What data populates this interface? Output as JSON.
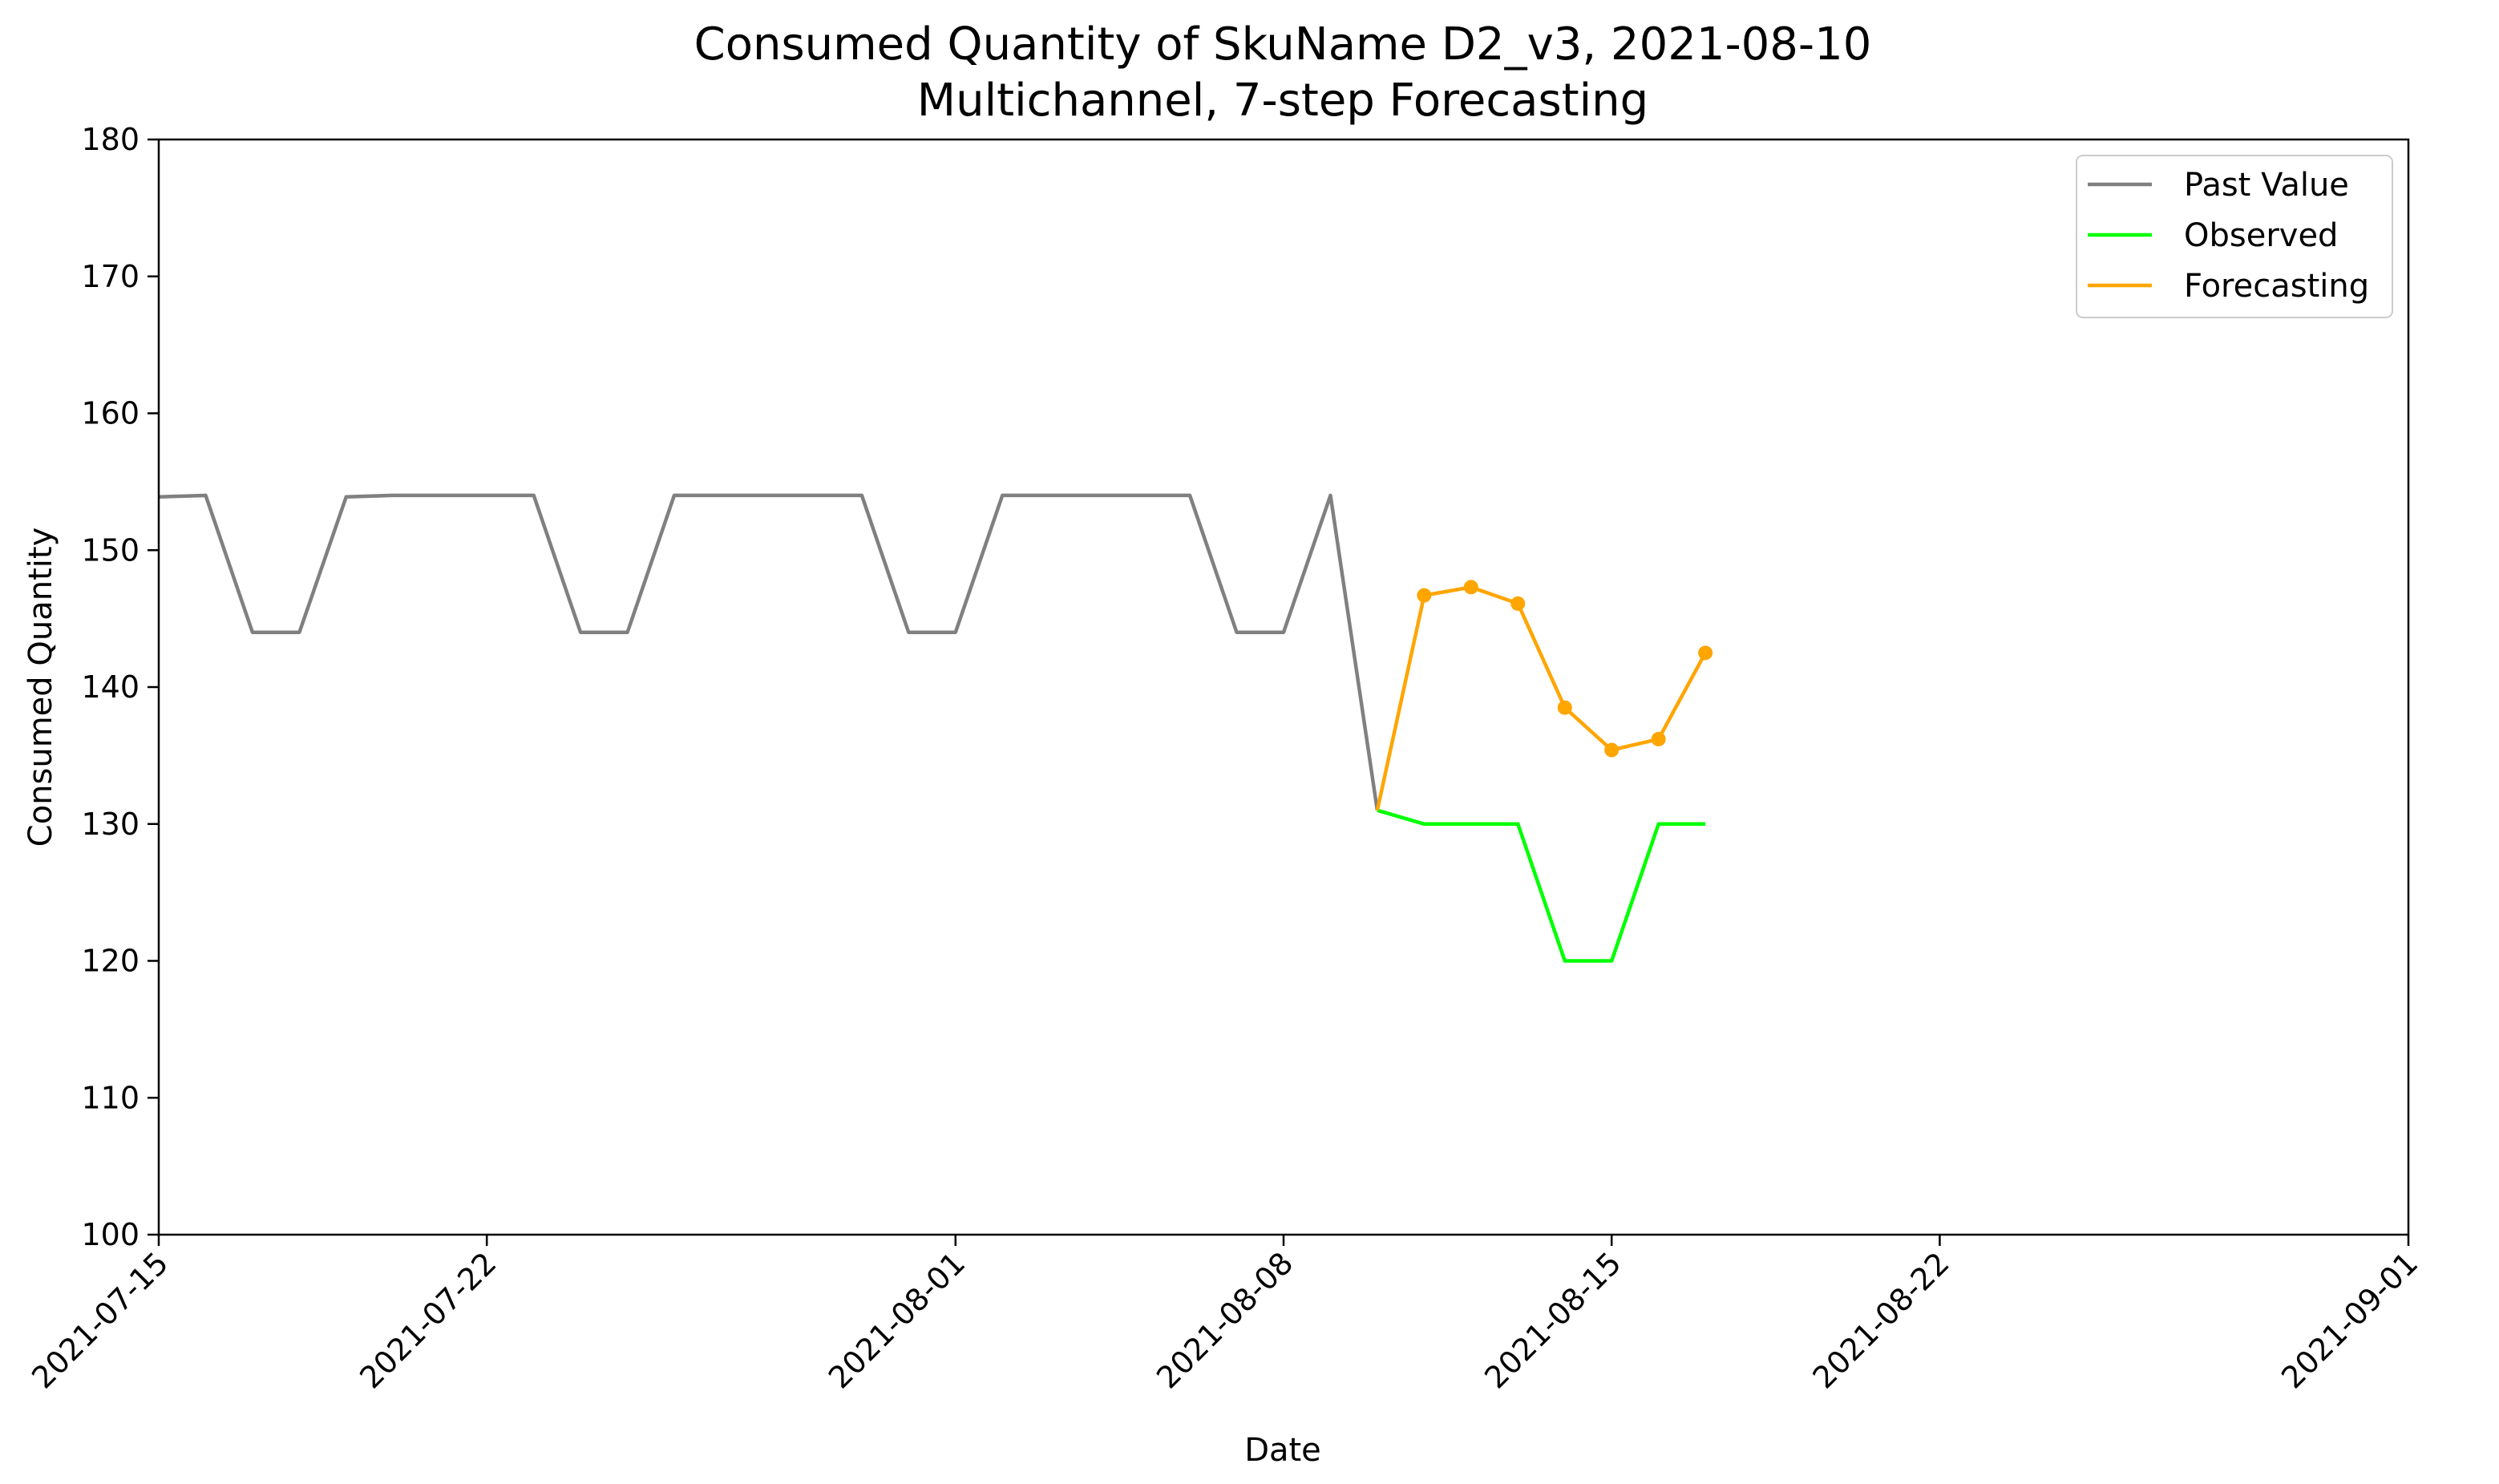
{
  "chart_data": {
    "type": "line",
    "title_line1": "Consumed Quantity of SkuName D2_v3, 2021-08-10",
    "title_line2": "Multichannel, 7-step Forecasting",
    "xlabel": "Date",
    "ylabel": "Consumed Quantity",
    "xlim": [
      "2021-07-15",
      "2021-09-01"
    ],
    "ylim": [
      100,
      180
    ],
    "x_ticks": [
      "2021-07-15",
      "2021-07-22",
      "2021-08-01",
      "2021-08-08",
      "2021-08-15",
      "2021-08-22",
      "2021-09-01"
    ],
    "y_ticks": [
      100,
      110,
      120,
      130,
      140,
      150,
      160,
      170,
      180
    ],
    "grid": false,
    "legend_position": "top-right",
    "series": [
      {
        "name": "Past Value",
        "color": "#808080",
        "markers": false,
        "x": [
          "2021-07-15",
          "2021-07-16",
          "2021-07-17",
          "2021-07-18",
          "2021-07-19",
          "2021-07-20",
          "2021-07-21",
          "2021-07-22",
          "2021-07-23",
          "2021-07-24",
          "2021-07-25",
          "2021-07-26",
          "2021-07-27",
          "2021-07-28",
          "2021-07-29",
          "2021-07-30",
          "2021-07-31",
          "2021-08-01",
          "2021-08-02",
          "2021-08-03",
          "2021-08-04",
          "2021-08-05",
          "2021-08-06",
          "2021-08-07",
          "2021-08-08",
          "2021-08-09",
          "2021-08-10"
        ],
        "y": [
          153.9,
          154.0,
          144.0,
          144.0,
          153.9,
          154.0,
          154.0,
          154.0,
          154.0,
          144.0,
          144.0,
          154.0,
          154.0,
          154.0,
          154.0,
          154.0,
          144.0,
          144.0,
          154.0,
          154.0,
          154.0,
          154.0,
          154.0,
          144.0,
          144.0,
          154.0,
          131.0
        ]
      },
      {
        "name": "Observed",
        "color": "#00ff00",
        "markers": false,
        "x": [
          "2021-08-10",
          "2021-08-11",
          "2021-08-12",
          "2021-08-13",
          "2021-08-14",
          "2021-08-15",
          "2021-08-16",
          "2021-08-17"
        ],
        "y": [
          131.0,
          130.0,
          130.0,
          130.0,
          120.0,
          120.0,
          130.0,
          130.0
        ]
      },
      {
        "name": "Forecasting",
        "color": "#ffa500",
        "markers": true,
        "x": [
          "2021-08-10",
          "2021-08-11",
          "2021-08-12",
          "2021-08-13",
          "2021-08-14",
          "2021-08-15",
          "2021-08-16",
          "2021-08-17"
        ],
        "y": [
          131.0,
          146.7,
          147.3,
          146.1,
          138.5,
          135.4,
          136.2,
          142.5
        ]
      }
    ]
  }
}
